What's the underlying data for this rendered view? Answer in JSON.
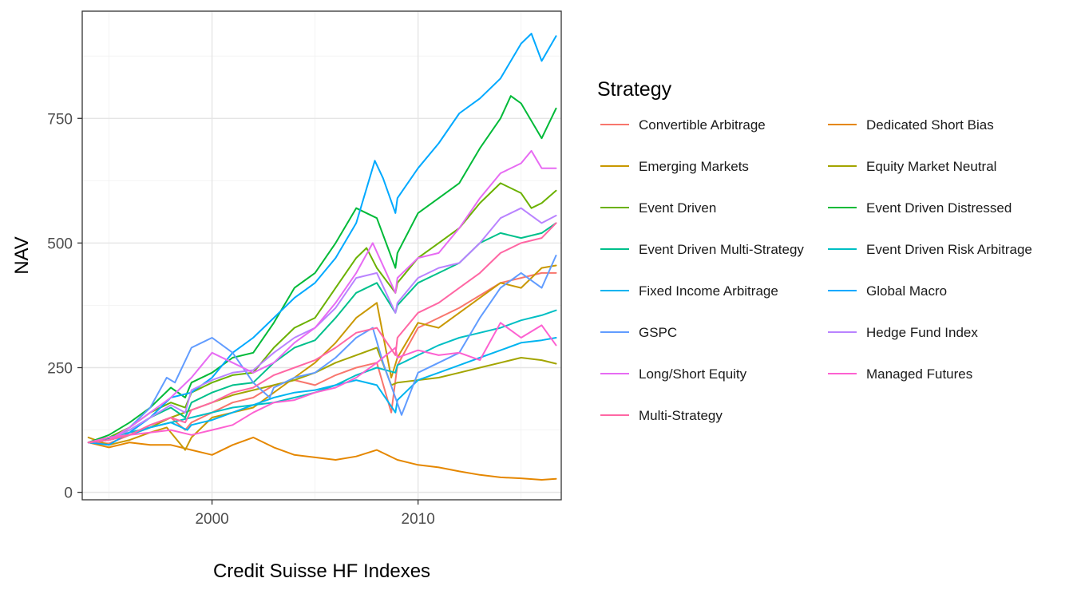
{
  "chart_data": {
    "type": "line",
    "xlabel": "Credit Suisse HF Indexes",
    "ylabel": "NAV",
    "xlim": [
      1993.7,
      2016.95
    ],
    "ylim": [
      -15,
      965
    ],
    "x_ticks": [
      2000,
      2010
    ],
    "y_ticks": [
      0,
      250,
      500,
      750
    ],
    "grid": true,
    "legend": {
      "title": "Strategy",
      "position": "right",
      "columns": 2
    },
    "series": [
      {
        "name": "Convertible Arbitrage",
        "color": "#F8766D",
        "x": [
          1994,
          1995,
          1996,
          1997,
          1998,
          1998.7,
          1999,
          2000,
          2001,
          2002,
          2003,
          2004,
          2005,
          2006,
          2007,
          2008,
          2008.7,
          2009,
          2010,
          2011,
          2012,
          2013,
          2014,
          2015,
          2016,
          2016.7
        ],
        "values": [
          100,
          98,
          115,
          135,
          150,
          125,
          140,
          160,
          180,
          190,
          215,
          225,
          215,
          235,
          250,
          260,
          160,
          255,
          330,
          350,
          370,
          395,
          420,
          430,
          440,
          440
        ]
      },
      {
        "name": "Dedicated Short Bias",
        "color": "#E58700",
        "x": [
          1994,
          1995,
          1996,
          1997,
          1998,
          1999,
          2000,
          2001,
          2002,
          2003,
          2004,
          2005,
          2006,
          2007,
          2008,
          2009,
          2010,
          2011,
          2012,
          2013,
          2014,
          2015,
          2016,
          2016.7
        ],
        "values": [
          100,
          90,
          100,
          95,
          95,
          85,
          75,
          95,
          110,
          90,
          75,
          70,
          65,
          72,
          85,
          65,
          55,
          50,
          42,
          35,
          30,
          28,
          25,
          27
        ]
      },
      {
        "name": "Emerging Markets",
        "color": "#C99800",
        "x": [
          1994,
          1995,
          1996,
          1997,
          1997.8,
          1998.7,
          1999,
          2000,
          2001,
          2002,
          2003,
          2004,
          2005,
          2006,
          2007,
          2008,
          2008.7,
          2009,
          2010,
          2011,
          2012,
          2013,
          2014,
          2015,
          2016,
          2016.7
        ],
        "values": [
          110,
          95,
          105,
          120,
          130,
          85,
          110,
          150,
          160,
          170,
          200,
          230,
          260,
          300,
          350,
          380,
          230,
          270,
          340,
          330,
          360,
          390,
          420,
          410,
          450,
          455
        ]
      },
      {
        "name": "Equity Market Neutral",
        "color": "#A3A500",
        "x": [
          1994,
          1995,
          1996,
          1997,
          1998,
          1999,
          2000,
          2001,
          2002,
          2003,
          2004,
          2005,
          2006,
          2007,
          2008,
          2008.7,
          2009,
          2010,
          2011,
          2012,
          2013,
          2014,
          2015,
          2016,
          2016.7
        ],
        "values": [
          100,
          105,
          115,
          130,
          150,
          165,
          180,
          195,
          205,
          215,
          225,
          240,
          260,
          275,
          290,
          215,
          220,
          225,
          230,
          240,
          250,
          260,
          270,
          265,
          258
        ]
      },
      {
        "name": "Event Driven",
        "color": "#6BB100",
        "x": [
          1994,
          1995,
          1996,
          1997,
          1998,
          1998.7,
          1999,
          2000,
          2001,
          2002,
          2003,
          2004,
          2005,
          2006,
          2007,
          2007.5,
          2008,
          2008.9,
          2009,
          2010,
          2011,
          2012,
          2013,
          2014,
          2015,
          2015.5,
          2016,
          2016.7
        ],
        "values": [
          100,
          110,
          130,
          160,
          180,
          170,
          200,
          220,
          235,
          240,
          290,
          330,
          350,
          410,
          470,
          490,
          450,
          400,
          420,
          470,
          500,
          530,
          580,
          620,
          600,
          570,
          580,
          605
        ]
      },
      {
        "name": "Event Driven Distressed",
        "color": "#00BA38",
        "x": [
          1994,
          1995,
          1996,
          1997,
          1998,
          1998.7,
          1999,
          2000,
          2001,
          2002,
          2003,
          2004,
          2005,
          2006,
          2007,
          2008,
          2008.9,
          2009,
          2010,
          2011,
          2012,
          2013,
          2014,
          2014.5,
          2015,
          2016,
          2016.7
        ],
        "values": [
          100,
          115,
          140,
          170,
          210,
          190,
          220,
          240,
          270,
          280,
          340,
          410,
          440,
          500,
          570,
          550,
          450,
          480,
          560,
          590,
          620,
          690,
          750,
          795,
          780,
          710,
          770
        ]
      },
      {
        "name": "Event Driven Multi-Strategy",
        "color": "#00C08B",
        "x": [
          1994,
          1995,
          1996,
          1997,
          1998,
          1998.7,
          1999,
          2000,
          2001,
          2002,
          2003,
          2004,
          2005,
          2006,
          2007,
          2008,
          2008.9,
          2009,
          2010,
          2011,
          2012,
          2013,
          2014,
          2015,
          2016,
          2016.7
        ],
        "values": [
          100,
          108,
          125,
          150,
          170,
          150,
          180,
          200,
          215,
          220,
          260,
          290,
          305,
          350,
          400,
          420,
          360,
          375,
          420,
          440,
          460,
          500,
          520,
          510,
          520,
          540
        ]
      },
      {
        "name": "Event Driven Risk Arbitrage",
        "color": "#00BFC4",
        "x": [
          1994,
          1995,
          1996,
          1997,
          1998,
          1999,
          2000,
          2001,
          2002,
          2003,
          2004,
          2005,
          2006,
          2007,
          2008,
          2008.9,
          2009,
          2010,
          2011,
          2012,
          2013,
          2014,
          2015,
          2016,
          2016.7
        ],
        "values": [
          100,
          110,
          120,
          130,
          140,
          150,
          160,
          170,
          175,
          180,
          190,
          200,
          215,
          235,
          250,
          240,
          255,
          275,
          295,
          310,
          320,
          330,
          345,
          355,
          365
        ]
      },
      {
        "name": "Fixed Income Arbitrage",
        "color": "#00B4F0",
        "x": [
          1994,
          1995,
          1996,
          1997,
          1998,
          1998.8,
          1999,
          2000,
          2001,
          2002,
          2003,
          2004,
          2005,
          2006,
          2007,
          2008,
          2008.9,
          2009,
          2010,
          2011,
          2012,
          2013,
          2014,
          2015,
          2016,
          2016.7
        ],
        "values": [
          100,
          105,
          115,
          130,
          140,
          125,
          135,
          145,
          160,
          175,
          190,
          200,
          205,
          215,
          225,
          215,
          160,
          185,
          225,
          240,
          255,
          270,
          285,
          300,
          305,
          310
        ]
      },
      {
        "name": "Global Macro",
        "color": "#00A9FF",
        "x": [
          1994,
          1995,
          1996,
          1997,
          1998,
          1999,
          2000,
          2001,
          2002,
          2003,
          2004,
          2005,
          2006,
          2007,
          2007.9,
          2008.3,
          2008.9,
          2009,
          2010,
          2011,
          2012,
          2013,
          2014,
          2015,
          2015.5,
          2016,
          2016.7
        ],
        "values": [
          100,
          95,
          120,
          150,
          190,
          200,
          230,
          280,
          310,
          350,
          390,
          420,
          470,
          540,
          665,
          630,
          560,
          590,
          650,
          700,
          760,
          790,
          830,
          900,
          920,
          865,
          915
        ]
      },
      {
        "name": "GSPC",
        "color": "#619CFF",
        "x": [
          1994,
          1995,
          1996,
          1997,
          1997.8,
          1998.2,
          1999,
          2000,
          2001,
          2002,
          2002.8,
          2003,
          2004,
          2005,
          2006,
          2007,
          2007.8,
          2008.3,
          2009.2,
          2010,
          2011,
          2012,
          2013,
          2014,
          2015,
          2016,
          2016.7
        ],
        "values": [
          100,
          105,
          130,
          170,
          230,
          220,
          290,
          310,
          280,
          220,
          190,
          210,
          230,
          240,
          270,
          310,
          330,
          260,
          155,
          240,
          260,
          280,
          350,
          410,
          440,
          410,
          475
        ]
      },
      {
        "name": "Hedge Fund Index",
        "color": "#B983FF",
        "x": [
          1994,
          1995,
          1996,
          1997,
          1998,
          1998.7,
          1999,
          2000,
          2001,
          2002,
          2003,
          2004,
          2005,
          2006,
          2007,
          2008,
          2008.9,
          2009,
          2010,
          2011,
          2012,
          2013,
          2014,
          2015,
          2016,
          2016.7
        ],
        "values": [
          100,
          105,
          125,
          150,
          175,
          160,
          205,
          225,
          240,
          245,
          280,
          310,
          330,
          370,
          430,
          440,
          360,
          380,
          430,
          450,
          460,
          500,
          550,
          570,
          540,
          555
        ]
      },
      {
        "name": "Long/Short Equity",
        "color": "#E76BF3",
        "x": [
          1994,
          1995,
          1996,
          1997,
          1998,
          1999,
          2000,
          2001,
          2002,
          2003,
          2004,
          2005,
          2006,
          2007,
          2007.8,
          2008.9,
          2009,
          2010,
          2011,
          2012,
          2013,
          2014,
          2015,
          2015.5,
          2016,
          2016.7
        ],
        "values": [
          100,
          105,
          130,
          160,
          190,
          230,
          280,
          260,
          240,
          260,
          300,
          330,
          380,
          440,
          500,
          400,
          430,
          470,
          480,
          530,
          590,
          640,
          660,
          685,
          650,
          650
        ]
      },
      {
        "name": "Managed Futures",
        "color": "#FD61D1",
        "x": [
          1994,
          1995,
          1996,
          1997,
          1998,
          1999,
          2000,
          2001,
          2002,
          2003,
          2004,
          2005,
          2006,
          2007,
          2008,
          2008.9,
          2009,
          2010,
          2011,
          2012,
          2013,
          2014,
          2015,
          2016,
          2016.7
        ],
        "values": [
          100,
          110,
          115,
          120,
          125,
          115,
          125,
          135,
          160,
          180,
          185,
          200,
          210,
          230,
          260,
          290,
          270,
          285,
          275,
          280,
          265,
          340,
          310,
          335,
          295
        ]
      },
      {
        "name": "Multi-Strategy",
        "color": "#FF67A4",
        "x": [
          1994,
          1995,
          1996,
          1997,
          1998,
          1998.7,
          1999,
          2000,
          2001,
          2002,
          2003,
          2004,
          2005,
          2006,
          2007,
          2008,
          2008.9,
          2009,
          2010,
          2011,
          2012,
          2013,
          2014,
          2015,
          2016,
          2016.7
        ],
        "values": [
          100,
          105,
          115,
          135,
          150,
          140,
          165,
          180,
          200,
          210,
          235,
          250,
          265,
          290,
          320,
          330,
          275,
          310,
          360,
          380,
          410,
          440,
          480,
          500,
          510,
          540
        ]
      }
    ]
  }
}
